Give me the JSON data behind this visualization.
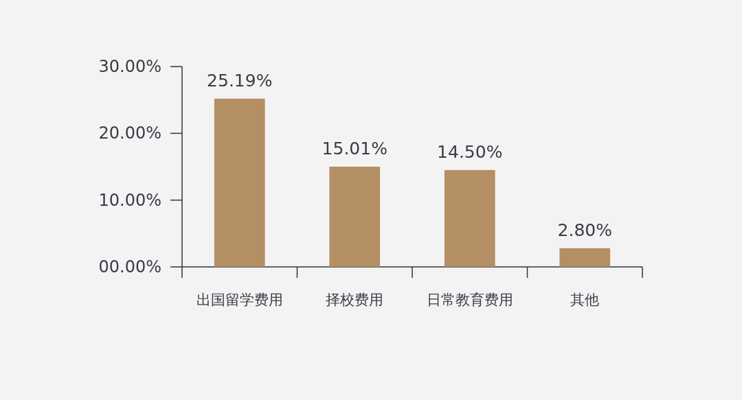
{
  "chart_data": {
    "type": "bar",
    "categories": [
      "出国留学费用",
      "择校费用",
      "日常教育费用",
      "其他"
    ],
    "values": [
      25.19,
      15.01,
      14.5,
      2.8
    ],
    "value_labels": [
      "25.19%",
      "15.01%",
      "14.50%",
      "2.80%"
    ],
    "color": "#b38f63",
    "ylim": [
      0,
      30
    ],
    "yticks": [
      {
        "value": 0,
        "label": "00.00%"
      },
      {
        "value": 10,
        "label": "10.00%"
      },
      {
        "value": 20,
        "label": "20.00%"
      },
      {
        "value": 30,
        "label": "30.00%"
      }
    ]
  }
}
